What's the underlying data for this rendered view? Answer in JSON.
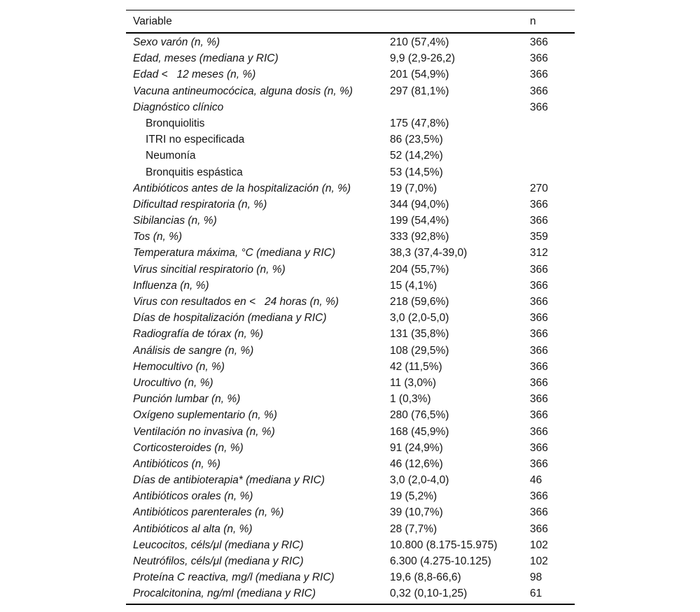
{
  "table": {
    "header": {
      "variable": "Variable",
      "value": "",
      "n": "n"
    },
    "rows": [
      {
        "label": "Sexo varón (n, %)",
        "value": "210 (57,4%)",
        "n": "366",
        "italic": true,
        "indent": false
      },
      {
        "label": "Edad, meses (mediana y RIC)",
        "value": "9,9 (2,9-26,2)",
        "n": "366",
        "italic": true,
        "indent": false
      },
      {
        "label": "Edad <   12 meses (n, %)",
        "value": "201 (54,9%)",
        "n": "366",
        "italic": true,
        "indent": false
      },
      {
        "label": "Vacuna antineumocócica, alguna dosis (n, %)",
        "value": "297 (81,1%)",
        "n": "366",
        "italic": true,
        "indent": false
      },
      {
        "label": "Diagnóstico clínico",
        "value": "",
        "n": "366",
        "italic": true,
        "indent": false
      },
      {
        "label": "Bronquiolitis",
        "value": "175 (47,8%)",
        "n": "",
        "italic": false,
        "indent": true
      },
      {
        "label": "ITRI no especificada",
        "value": "86 (23,5%)",
        "n": "",
        "italic": false,
        "indent": true
      },
      {
        "label": "Neumonía",
        "value": "52 (14,2%)",
        "n": "",
        "italic": false,
        "indent": true
      },
      {
        "label": "Bronquitis espástica",
        "value": "53 (14,5%)",
        "n": "",
        "italic": false,
        "indent": true
      },
      {
        "label": "Antibióticos antes de la hospitalización (n, %)",
        "value": "19 (7,0%)",
        "n": "270",
        "italic": true,
        "indent": false
      },
      {
        "label": "Dificultad respiratoria (n, %)",
        "value": "344 (94,0%)",
        "n": "366",
        "italic": true,
        "indent": false
      },
      {
        "label": "Sibilancias (n, %)",
        "value": "199 (54,4%)",
        "n": "366",
        "italic": true,
        "indent": false
      },
      {
        "label": "Tos (n, %)",
        "value": "333 (92,8%)",
        "n": "359",
        "italic": true,
        "indent": false
      },
      {
        "label": "Temperatura máxima, °C (mediana y RIC)",
        "value": "38,3 (37,4-39,0)",
        "n": "312",
        "italic": true,
        "indent": false
      },
      {
        "label": "Virus sincitial respiratorio (n, %)",
        "value": "204 (55,7%)",
        "n": "366",
        "italic": true,
        "indent": false
      },
      {
        "label": "Influenza (n, %)",
        "value": "15 (4,1%)",
        "n": "366",
        "italic": true,
        "indent": false
      },
      {
        "label": "Virus con resultados en <   24 horas (n, %)",
        "value": "218 (59,6%)",
        "n": "366",
        "italic": true,
        "indent": false
      },
      {
        "label": "Días de hospitalización (mediana y RIC)",
        "value": "3,0 (2,0-5,0)",
        "n": "366",
        "italic": true,
        "indent": false
      },
      {
        "label": "Radiografía de tórax (n, %)",
        "value": "131 (35,8%)",
        "n": "366",
        "italic": true,
        "indent": false
      },
      {
        "label": "Análisis de sangre (n, %)",
        "value": "108 (29,5%)",
        "n": "366",
        "italic": true,
        "indent": false
      },
      {
        "label": "Hemocultivo (n, %)",
        "value": "42 (11,5%)",
        "n": "366",
        "italic": true,
        "indent": false
      },
      {
        "label": "Urocultivo (n, %)",
        "value": "11 (3,0%)",
        "n": "366",
        "italic": true,
        "indent": false
      },
      {
        "label": "Punción lumbar (n, %)",
        "value": "1 (0,3%)",
        "n": "366",
        "italic": true,
        "indent": false
      },
      {
        "label": "Oxígeno suplementario (n, %)",
        "value": "280 (76,5%)",
        "n": "366",
        "italic": true,
        "indent": false
      },
      {
        "label": "Ventilación no invasiva (n, %)",
        "value": "168 (45,9%)",
        "n": "366",
        "italic": true,
        "indent": false
      },
      {
        "label": "Corticosteroides (n, %)",
        "value": "91 (24,9%)",
        "n": "366",
        "italic": true,
        "indent": false
      },
      {
        "label": "Antibióticos (n, %)",
        "value": "46 (12,6%)",
        "n": "366",
        "italic": true,
        "indent": false
      },
      {
        "label": "Días de antibioterapia* (mediana y RIC)",
        "value": "3,0 (2,0-4,0)",
        "n": "46",
        "italic": true,
        "indent": false
      },
      {
        "label": "Antibióticos orales (n, %)",
        "value": "19 (5,2%)",
        "n": "366",
        "italic": true,
        "indent": false
      },
      {
        "label": "Antibióticos parenterales (n, %)",
        "value": "39 (10,7%)",
        "n": "366",
        "italic": true,
        "indent": false
      },
      {
        "label": "Antibióticos al alta (n, %)",
        "value": "28 (7,7%)",
        "n": "366",
        "italic": true,
        "indent": false
      },
      {
        "label": "Leucocitos, céls/μl (mediana y RIC)",
        "value": "10.800 (8.175-15.975)",
        "n": "102",
        "italic": true,
        "indent": false
      },
      {
        "label": "Neutrófilos, céls/μl (mediana y RIC)",
        "value": "6.300 (4.275-10.125)",
        "n": "102",
        "italic": true,
        "indent": false
      },
      {
        "label": "Proteína C reactiva, mg/l (mediana y RIC)",
        "value": "19,6 (8,8-66,6)",
        "n": "98",
        "italic": true,
        "indent": false
      },
      {
        "label": "Procalcitonina, ng/ml (mediana y RIC)",
        "value": "0,32 (0,10-1,25)",
        "n": "61",
        "italic": true,
        "indent": false
      }
    ]
  }
}
